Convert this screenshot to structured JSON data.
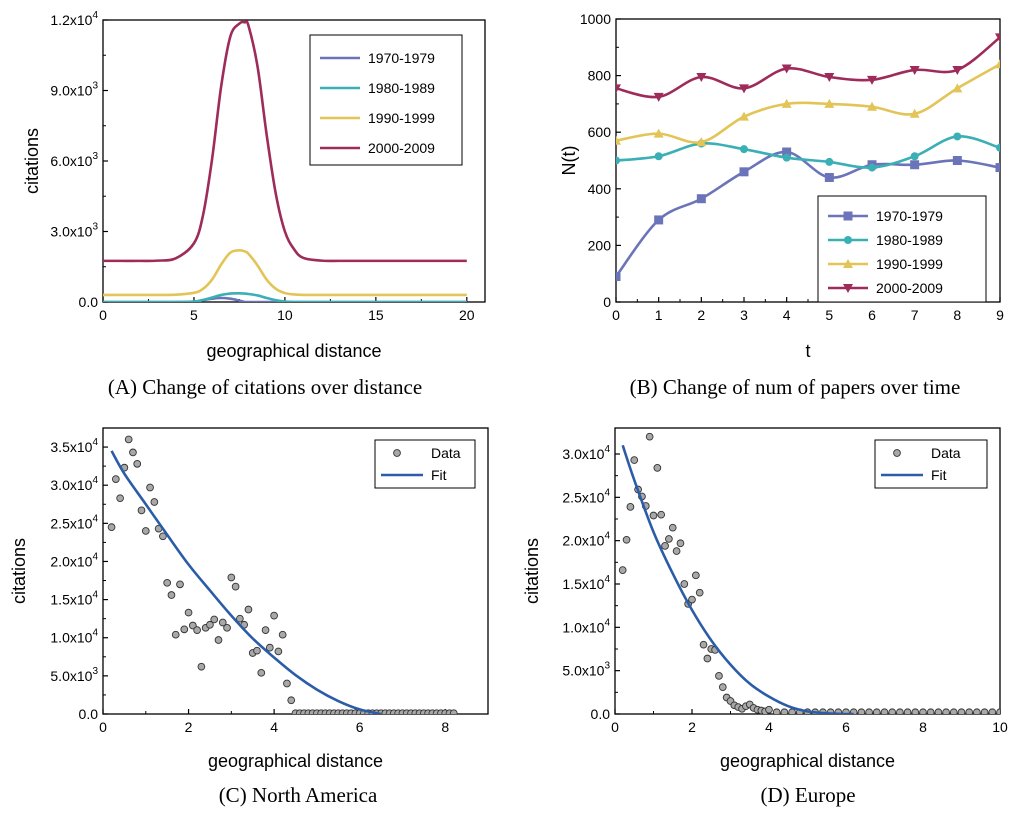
{
  "chart_data": [
    {
      "id": "A",
      "type": "line",
      "caption": "(A) Change of citations over distance",
      "xlabel": "geographical distance",
      "ylabel": "citations",
      "xlim": [
        0,
        21
      ],
      "ylim": [
        0,
        12000
      ],
      "xticks": [
        0,
        5,
        10,
        15,
        20
      ],
      "yticks": [
        0,
        3000,
        6000,
        9000,
        12000
      ],
      "ytick_labels": [
        "0.0",
        "3.0x10^3",
        "6.0x10^3",
        "9.0x10^3",
        "1.2x10^4"
      ],
      "grid": false,
      "legend": "top-right",
      "x": [
        0,
        1,
        2,
        3,
        4,
        5,
        5.5,
        6,
        6.5,
        7,
        7.5,
        7.8,
        8,
        8.5,
        9,
        9.5,
        10,
        10.5,
        11,
        12,
        13,
        14,
        15,
        16,
        17,
        18,
        19,
        20
      ],
      "series": [
        {
          "name": "1970-1979",
          "color": "#6b74b8",
          "values": [
            0,
            0,
            0,
            0,
            0,
            0,
            80,
            140,
            170,
            140,
            60,
            0,
            0,
            0,
            0,
            0,
            0,
            0,
            0,
            0,
            0,
            0,
            0,
            0,
            0,
            0,
            0,
            0
          ]
        },
        {
          "name": "1980-1989",
          "color": "#3aafb5",
          "values": [
            0,
            0,
            0,
            0,
            0,
            20,
            90,
            190,
            300,
            360,
            370,
            360,
            340,
            280,
            170,
            80,
            20,
            0,
            0,
            0,
            0,
            0,
            0,
            0,
            0,
            0,
            0,
            0
          ]
        },
        {
          "name": "1990-1999",
          "color": "#e3c457",
          "values": [
            300,
            300,
            300,
            300,
            310,
            390,
            560,
            960,
            1600,
            2100,
            2200,
            2150,
            2050,
            1550,
            950,
            560,
            380,
            320,
            300,
            300,
            300,
            300,
            300,
            300,
            300,
            300,
            300,
            300
          ]
        },
        {
          "name": "2000-2009",
          "color": "#9e2b5a",
          "values": [
            1750,
            1750,
            1750,
            1760,
            1860,
            2500,
            3700,
            6100,
            9200,
            11300,
            11850,
            11900,
            11750,
            10000,
            7100,
            4600,
            3000,
            2250,
            1880,
            1760,
            1750,
            1750,
            1750,
            1750,
            1750,
            1750,
            1750,
            1750
          ]
        }
      ]
    },
    {
      "id": "B",
      "type": "line",
      "caption": "(B) Change of num of papers over time",
      "xlabel": "t",
      "ylabel": "N(t)",
      "xlim": [
        0,
        9
      ],
      "ylim": [
        0,
        1000
      ],
      "xticks": [
        0,
        1,
        2,
        3,
        4,
        5,
        6,
        7,
        8,
        9
      ],
      "yticks": [
        0,
        200,
        400,
        600,
        800,
        1000
      ],
      "grid": false,
      "legend": "bottom-right",
      "x": [
        0,
        1,
        2,
        3,
        4,
        5,
        6,
        7,
        8,
        9
      ],
      "series": [
        {
          "name": "1970-1979",
          "color": "#6b74b8",
          "marker": "square",
          "values": [
            90,
            290,
            365,
            460,
            530,
            440,
            485,
            485,
            500,
            475
          ]
        },
        {
          "name": "1980-1989",
          "color": "#3aafb5",
          "marker": "circle",
          "values": [
            500,
            515,
            560,
            540,
            510,
            495,
            475,
            515,
            585,
            545
          ]
        },
        {
          "name": "1990-1999",
          "color": "#e3c457",
          "marker": "triangle-up",
          "values": [
            570,
            595,
            565,
            655,
            700,
            700,
            690,
            665,
            755,
            840
          ]
        },
        {
          "name": "2000-2009",
          "color": "#9e2b5a",
          "marker": "triangle-down",
          "values": [
            755,
            725,
            795,
            755,
            825,
            795,
            785,
            820,
            820,
            935
          ]
        }
      ]
    },
    {
      "id": "C",
      "type": "scatter",
      "caption": "(C) North America",
      "xlabel": "geographical distance",
      "ylabel": "citations",
      "xlim": [
        0,
        9
      ],
      "ylim": [
        0,
        37500
      ],
      "xticks": [
        0,
        2,
        4,
        6,
        8
      ],
      "yticks": [
        0,
        5000,
        10000,
        15000,
        20000,
        25000,
        30000,
        35000
      ],
      "ytick_labels": [
        "0.0",
        "5.0x10^3",
        "1.0x10^4",
        "1.5x10^4",
        "2.0x10^4",
        "2.5x10^4",
        "3.0x10^4",
        "3.5x10^4"
      ],
      "grid": false,
      "legend": "top-right",
      "legend_labels": [
        "Data",
        "Fit"
      ],
      "fit_color": "#2b5ca8",
      "fit": {
        "x": [
          0.2,
          0.5,
          1,
          1.5,
          2,
          2.5,
          3,
          3.5,
          4,
          4.5,
          5,
          5.5,
          6,
          6.5
        ],
        "y": [
          34500,
          31500,
          27500,
          23500,
          19600,
          16200,
          12900,
          9900,
          7400,
          5100,
          3200,
          1700,
          600,
          0
        ]
      },
      "points": {
        "x": [
          0.2,
          0.3,
          0.4,
          0.5,
          0.6,
          0.7,
          0.8,
          0.9,
          1.0,
          1.1,
          1.2,
          1.3,
          1.4,
          1.5,
          1.6,
          1.7,
          1.8,
          1.9,
          2.0,
          2.1,
          2.2,
          2.3,
          2.4,
          2.5,
          2.6,
          2.7,
          2.8,
          2.9,
          3.0,
          3.1,
          3.2,
          3.3,
          3.4,
          3.5,
          3.6,
          3.7,
          3.8,
          3.9,
          4.0,
          4.1,
          4.2,
          4.3,
          4.4,
          4.5,
          4.6,
          4.7,
          4.8,
          4.9,
          5.0,
          5.1,
          5.2,
          5.3,
          5.4,
          5.5,
          5.6,
          5.7,
          5.8,
          5.9,
          6.0,
          6.1,
          6.2,
          6.3,
          6.4,
          6.5,
          6.6,
          6.7,
          6.8,
          6.9,
          7.0,
          7.1,
          7.2,
          7.3,
          7.4,
          7.5,
          7.6,
          7.7,
          7.8,
          7.9,
          8.0,
          8.1,
          8.2
        ],
        "y": [
          24500,
          30800,
          28300,
          32300,
          36000,
          34300,
          32800,
          26700,
          24000,
          29700,
          27800,
          24300,
          23300,
          17200,
          15600,
          10400,
          17000,
          11100,
          13300,
          11600,
          11000,
          6200,
          11300,
          11700,
          12400,
          9700,
          12000,
          11300,
          17900,
          16700,
          12500,
          11700,
          13700,
          8000,
          8300,
          5400,
          11000,
          8700,
          12900,
          8200,
          10400,
          4000,
          1800,
          100,
          100,
          100,
          100,
          100,
          100,
          100,
          100,
          100,
          100,
          100,
          100,
          100,
          100,
          100,
          100,
          100,
          100,
          100,
          100,
          100,
          100,
          100,
          100,
          100,
          100,
          100,
          100,
          100,
          100,
          100,
          100,
          100,
          100,
          100,
          100,
          100,
          100
        ]
      }
    },
    {
      "id": "D",
      "type": "scatter",
      "caption": "(D) Europe",
      "xlabel": "geographical distance",
      "ylabel": "citations",
      "xlim": [
        0,
        10
      ],
      "ylim": [
        0,
        33000
      ],
      "xticks": [
        0,
        2,
        4,
        6,
        8,
        10
      ],
      "yticks": [
        0,
        5000,
        10000,
        15000,
        20000,
        25000,
        30000
      ],
      "ytick_labels": [
        "0.0",
        "5.0x10^3",
        "1.0x10^4",
        "1.5x10^4",
        "2.0x10^4",
        "2.5x10^4",
        "3.0x10^4"
      ],
      "grid": false,
      "legend": "top-right",
      "legend_labels": [
        "Data",
        "Fit"
      ],
      "fit_color": "#2b5ca8",
      "fit": {
        "x": [
          0.2,
          0.5,
          1,
          1.5,
          2,
          2.5,
          3,
          3.5,
          4,
          4.5,
          5,
          5.5,
          5.9,
          6.2
        ],
        "y": [
          31000,
          27000,
          21000,
          16200,
          12000,
          8500,
          5700,
          3500,
          2000,
          900,
          300,
          80,
          0,
          0
        ]
      },
      "points": {
        "x": [
          0.2,
          0.3,
          0.4,
          0.5,
          0.6,
          0.7,
          0.8,
          0.9,
          1.0,
          1.1,
          1.2,
          1.3,
          1.4,
          1.5,
          1.6,
          1.7,
          1.8,
          1.9,
          2.0,
          2.1,
          2.2,
          2.3,
          2.4,
          2.5,
          2.6,
          2.7,
          2.8,
          2.9,
          3.0,
          3.1,
          3.2,
          3.3,
          3.4,
          3.5,
          3.6,
          3.7,
          3.8,
          3.9,
          4.0,
          4.2,
          4.4,
          4.6,
          4.8,
          5.0,
          5.2,
          5.4,
          5.6,
          5.8,
          6.0,
          6.2,
          6.4,
          6.6,
          6.8,
          7.0,
          7.2,
          7.4,
          7.6,
          7.8,
          8.0,
          8.2,
          8.4,
          8.6,
          8.8,
          9.0,
          9.2,
          9.4,
          9.6,
          9.8,
          10.0
        ],
        "y": [
          16600,
          20100,
          23900,
          29300,
          25900,
          25100,
          24000,
          32000,
          22900,
          28400,
          23000,
          19400,
          20200,
          21500,
          18800,
          19700,
          15000,
          12700,
          13200,
          16000,
          14000,
          8000,
          6400,
          7500,
          7400,
          4400,
          3100,
          1900,
          1500,
          1000,
          800,
          600,
          900,
          1100,
          700,
          500,
          400,
          300,
          500,
          200,
          200,
          200,
          200,
          200,
          200,
          200,
          200,
          200,
          200,
          200,
          200,
          200,
          200,
          200,
          200,
          200,
          200,
          200,
          200,
          200,
          200,
          200,
          200,
          200,
          200,
          200,
          200,
          200,
          200
        ]
      }
    }
  ]
}
